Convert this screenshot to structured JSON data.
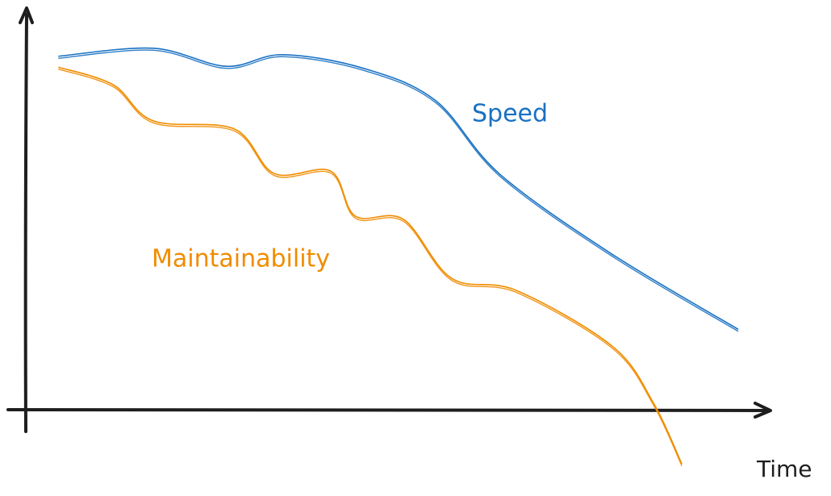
{
  "chart_data": {
    "type": "line",
    "x_label": "Time",
    "xlim": [
      0,
      100
    ],
    "ylim": [
      -20,
      100
    ],
    "series": [
      {
        "name": "Speed",
        "color": "#1971c2",
        "x": [
          4.6,
          17.4,
          27.2,
          34.8,
          45.7,
          55.4,
          64.1,
          79.3,
          96.2
        ],
        "values": [
          88,
          90,
          85.5,
          88.4,
          85,
          77,
          58.6,
          38.6,
          20
        ]
      },
      {
        "name": "Maintainability",
        "color": "#f08c00",
        "x": [
          4.6,
          12,
          17.4,
          28.3,
          33.7,
          41.3,
          44.6,
          51.1,
          57.6,
          66.3,
          79.3,
          84.8,
          88.6
        ],
        "values": [
          85.3,
          80.9,
          71.9,
          69.9,
          58.8,
          59.4,
          48.2,
          47.4,
          32.7,
          29.7,
          15.7,
          1.6,
          -13.5
        ]
      }
    ]
  }
}
